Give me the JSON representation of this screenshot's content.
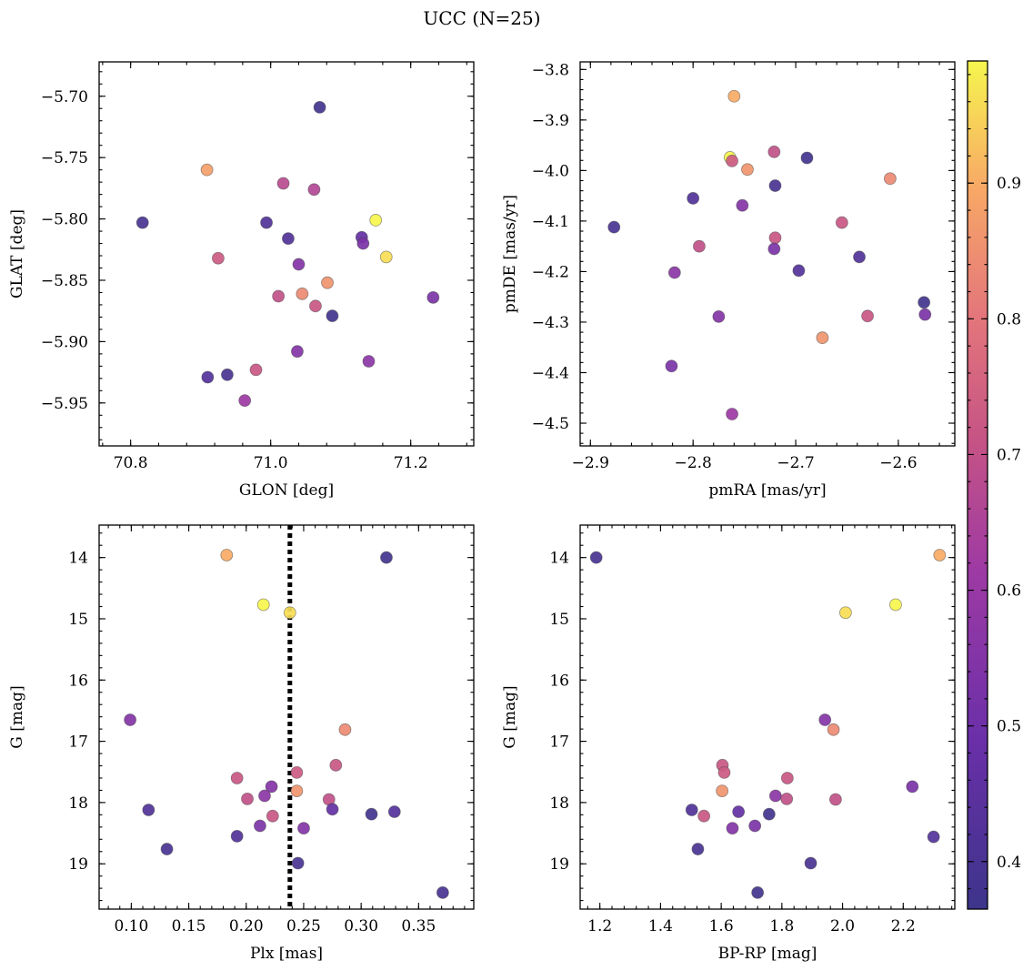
{
  "figure": {
    "title": "UCC (N=25)",
    "colormap": "plasma",
    "colorbar": {
      "ticks": [
        "0.4",
        "0.5",
        "0.6",
        "0.7",
        "0.8",
        "0.9"
      ],
      "range": [
        0.365,
        0.99
      ]
    }
  },
  "chart_data": [
    {
      "type": "scatter",
      "xlabel": "GLON [deg]",
      "ylabel": "GLAT [deg]",
      "xlim": [
        70.755,
        71.29
      ],
      "ylim": [
        -5.985,
        -5.672
      ],
      "y_inverted": false,
      "xticks": [
        70.8,
        71.0,
        71.2
      ],
      "xticklabels": [
        "70.8",
        "71.0",
        "71.2"
      ],
      "yticks": [
        -5.7,
        -5.75,
        -5.8,
        -5.85,
        -5.9,
        -5.95
      ],
      "yticklabels": [
        "−5.70",
        "−5.75",
        "−5.80",
        "−5.85",
        "−5.90",
        "−5.95"
      ],
      "points": [
        {
          "x": 71.07,
          "y": -5.709,
          "c": 0.38
        },
        {
          "x": 70.909,
          "y": -5.76,
          "c": 0.88
        },
        {
          "x": 71.018,
          "y": -5.771,
          "c": 0.68
        },
        {
          "x": 71.062,
          "y": -5.776,
          "c": 0.66
        },
        {
          "x": 71.15,
          "y": -5.801,
          "c": 0.99
        },
        {
          "x": 70.817,
          "y": -5.803,
          "c": 0.4
        },
        {
          "x": 70.994,
          "y": -5.803,
          "c": 0.42
        },
        {
          "x": 71.025,
          "y": -5.816,
          "c": 0.42
        },
        {
          "x": 71.13,
          "y": -5.815,
          "c": 0.47
        },
        {
          "x": 71.132,
          "y": -5.82,
          "c": 0.53
        },
        {
          "x": 70.925,
          "y": -5.832,
          "c": 0.73
        },
        {
          "x": 71.165,
          "y": -5.831,
          "c": 0.96
        },
        {
          "x": 71.04,
          "y": -5.837,
          "c": 0.55
        },
        {
          "x": 71.081,
          "y": -5.852,
          "c": 0.86
        },
        {
          "x": 71.045,
          "y": -5.861,
          "c": 0.84
        },
        {
          "x": 71.011,
          "y": -5.863,
          "c": 0.7
        },
        {
          "x": 71.232,
          "y": -5.864,
          "c": 0.53
        },
        {
          "x": 71.064,
          "y": -5.871,
          "c": 0.72
        },
        {
          "x": 71.088,
          "y": -5.879,
          "c": 0.38
        },
        {
          "x": 71.038,
          "y": -5.908,
          "c": 0.55
        },
        {
          "x": 71.14,
          "y": -5.916,
          "c": 0.57
        },
        {
          "x": 70.979,
          "y": -5.923,
          "c": 0.72
        },
        {
          "x": 70.91,
          "y": -5.929,
          "c": 0.43
        },
        {
          "x": 70.938,
          "y": -5.927,
          "c": 0.4
        },
        {
          "x": 70.963,
          "y": -5.948,
          "c": 0.61
        }
      ]
    },
    {
      "type": "scatter",
      "xlabel": "pmRA [mas/yr]",
      "ylabel": "pmDE [mas/yr]",
      "xlim": [
        -2.91,
        -2.545
      ],
      "ylim": [
        -4.545,
        -3.785
      ],
      "y_inverted": false,
      "xticks": [
        -2.9,
        -2.8,
        -2.7,
        -2.6
      ],
      "xticklabels": [
        "−2.9",
        "−2.8",
        "−2.7",
        "−2.6"
      ],
      "yticks": [
        -3.8,
        -3.9,
        -4.0,
        -4.1,
        -4.2,
        -4.3,
        -4.4,
        -4.5
      ],
      "yticklabels": [
        "−3.8",
        "−3.9",
        "−4.0",
        "−4.1",
        "−4.2",
        "−4.3",
        "−4.4",
        "−4.5"
      ],
      "points": [
        {
          "x": -2.76,
          "y": -3.853,
          "c": 0.9
        },
        {
          "x": -2.721,
          "y": -3.963,
          "c": 0.7
        },
        {
          "x": -2.764,
          "y": -3.974,
          "c": 0.99
        },
        {
          "x": -2.762,
          "y": -3.981,
          "c": 0.73
        },
        {
          "x": -2.689,
          "y": -3.975,
          "c": 0.38
        },
        {
          "x": -2.747,
          "y": -3.998,
          "c": 0.86
        },
        {
          "x": -2.608,
          "y": -4.016,
          "c": 0.84
        },
        {
          "x": -2.72,
          "y": -4.03,
          "c": 0.4
        },
        {
          "x": -2.8,
          "y": -4.055,
          "c": 0.42
        },
        {
          "x": -2.752,
          "y": -4.069,
          "c": 0.55
        },
        {
          "x": -2.655,
          "y": -4.103,
          "c": 0.72
        },
        {
          "x": -2.877,
          "y": -4.112,
          "c": 0.4
        },
        {
          "x": -2.72,
          "y": -4.133,
          "c": 0.72
        },
        {
          "x": -2.794,
          "y": -4.15,
          "c": 0.7
        },
        {
          "x": -2.721,
          "y": -4.155,
          "c": 0.53
        },
        {
          "x": -2.638,
          "y": -4.171,
          "c": 0.42
        },
        {
          "x": -2.697,
          "y": -4.198,
          "c": 0.43
        },
        {
          "x": -2.818,
          "y": -4.202,
          "c": 0.57
        },
        {
          "x": -2.575,
          "y": -4.261,
          "c": 0.38
        },
        {
          "x": -2.775,
          "y": -4.289,
          "c": 0.55
        },
        {
          "x": -2.63,
          "y": -4.288,
          "c": 0.72
        },
        {
          "x": -2.574,
          "y": -4.285,
          "c": 0.53
        },
        {
          "x": -2.674,
          "y": -4.331,
          "c": 0.86
        },
        {
          "x": -2.821,
          "y": -4.387,
          "c": 0.53
        },
        {
          "x": -2.762,
          "y": -4.482,
          "c": 0.61
        }
      ]
    },
    {
      "type": "scatter",
      "xlabel": "Plx [mas]",
      "ylabel": "G [mag]",
      "xlim": [
        0.072,
        0.398
      ],
      "ylim": [
        13.47,
        19.74
      ],
      "y_inverted": true,
      "xticks": [
        0.1,
        0.15,
        0.2,
        0.25,
        0.3,
        0.35
      ],
      "xticklabels": [
        "0.10",
        "0.15",
        "0.20",
        "0.25",
        "0.30",
        "0.35"
      ],
      "yticks": [
        14,
        15,
        16,
        17,
        18,
        19
      ],
      "yticklabels": [
        "14",
        "15",
        "16",
        "17",
        "18",
        "19"
      ],
      "vline": {
        "x": 0.238,
        "style": "dotted"
      },
      "points": [
        {
          "x": 0.183,
          "y": 13.96,
          "c": 0.9
        },
        {
          "x": 0.322,
          "y": 14.0,
          "c": 0.38
        },
        {
          "x": 0.215,
          "y": 14.77,
          "c": 0.99
        },
        {
          "x": 0.238,
          "y": 14.9,
          "c": 0.96
        },
        {
          "x": 0.099,
          "y": 16.65,
          "c": 0.55
        },
        {
          "x": 0.286,
          "y": 16.81,
          "c": 0.84
        },
        {
          "x": 0.244,
          "y": 17.51,
          "c": 0.73
        },
        {
          "x": 0.278,
          "y": 17.39,
          "c": 0.72
        },
        {
          "x": 0.192,
          "y": 17.6,
          "c": 0.72
        },
        {
          "x": 0.222,
          "y": 17.74,
          "c": 0.55
        },
        {
          "x": 0.244,
          "y": 17.81,
          "c": 0.86
        },
        {
          "x": 0.201,
          "y": 17.94,
          "c": 0.7
        },
        {
          "x": 0.216,
          "y": 17.89,
          "c": 0.57
        },
        {
          "x": 0.272,
          "y": 17.95,
          "c": 0.7
        },
        {
          "x": 0.115,
          "y": 18.12,
          "c": 0.42
        },
        {
          "x": 0.275,
          "y": 18.11,
          "c": 0.47
        },
        {
          "x": 0.309,
          "y": 18.19,
          "c": 0.38
        },
        {
          "x": 0.329,
          "y": 18.15,
          "c": 0.43
        },
        {
          "x": 0.223,
          "y": 18.22,
          "c": 0.72
        },
        {
          "x": 0.212,
          "y": 18.38,
          "c": 0.53
        },
        {
          "x": 0.25,
          "y": 18.42,
          "c": 0.55
        },
        {
          "x": 0.192,
          "y": 18.55,
          "c": 0.42
        },
        {
          "x": 0.131,
          "y": 18.76,
          "c": 0.4
        },
        {
          "x": 0.245,
          "y": 18.99,
          "c": 0.4
        },
        {
          "x": 0.371,
          "y": 19.47,
          "c": 0.4
        }
      ]
    },
    {
      "type": "scatter",
      "xlabel": "BP-RP [mag]",
      "ylabel": "G [mag]",
      "xlim": [
        1.135,
        2.37
      ],
      "ylim": [
        13.47,
        19.74
      ],
      "y_inverted": true,
      "xticks": [
        1.2,
        1.4,
        1.6,
        1.8,
        2.0,
        2.2
      ],
      "xticklabels": [
        "1.2",
        "1.4",
        "1.6",
        "1.8",
        "2.0",
        "2.2"
      ],
      "yticks": [
        14,
        15,
        16,
        17,
        18,
        19
      ],
      "yticklabels": [
        "14",
        "15",
        "16",
        "17",
        "18",
        "19"
      ],
      "points": [
        {
          "x": 1.188,
          "y": 14.0,
          "c": 0.4
        },
        {
          "x": 2.32,
          "y": 13.96,
          "c": 0.9
        },
        {
          "x": 2.175,
          "y": 14.77,
          "c": 0.99
        },
        {
          "x": 2.01,
          "y": 14.9,
          "c": 0.96
        },
        {
          "x": 1.942,
          "y": 16.65,
          "c": 0.55
        },
        {
          "x": 1.97,
          "y": 16.81,
          "c": 0.84
        },
        {
          "x": 1.604,
          "y": 17.39,
          "c": 0.72
        },
        {
          "x": 1.61,
          "y": 17.51,
          "c": 0.73
        },
        {
          "x": 1.818,
          "y": 17.6,
          "c": 0.72
        },
        {
          "x": 2.23,
          "y": 17.74,
          "c": 0.53
        },
        {
          "x": 1.603,
          "y": 17.81,
          "c": 0.86
        },
        {
          "x": 1.779,
          "y": 17.89,
          "c": 0.57
        },
        {
          "x": 1.816,
          "y": 17.94,
          "c": 0.7
        },
        {
          "x": 1.977,
          "y": 17.95,
          "c": 0.7
        },
        {
          "x": 1.503,
          "y": 18.12,
          "c": 0.42
        },
        {
          "x": 1.657,
          "y": 18.15,
          "c": 0.47
        },
        {
          "x": 1.758,
          "y": 18.19,
          "c": 0.38
        },
        {
          "x": 1.543,
          "y": 18.22,
          "c": 0.72
        },
        {
          "x": 1.711,
          "y": 18.38,
          "c": 0.53
        },
        {
          "x": 1.637,
          "y": 18.42,
          "c": 0.55
        },
        {
          "x": 2.3,
          "y": 18.56,
          "c": 0.43
        },
        {
          "x": 1.523,
          "y": 18.76,
          "c": 0.4
        },
        {
          "x": 1.895,
          "y": 18.99,
          "c": 0.4
        },
        {
          "x": 1.72,
          "y": 19.47,
          "c": 0.38
        }
      ]
    }
  ]
}
